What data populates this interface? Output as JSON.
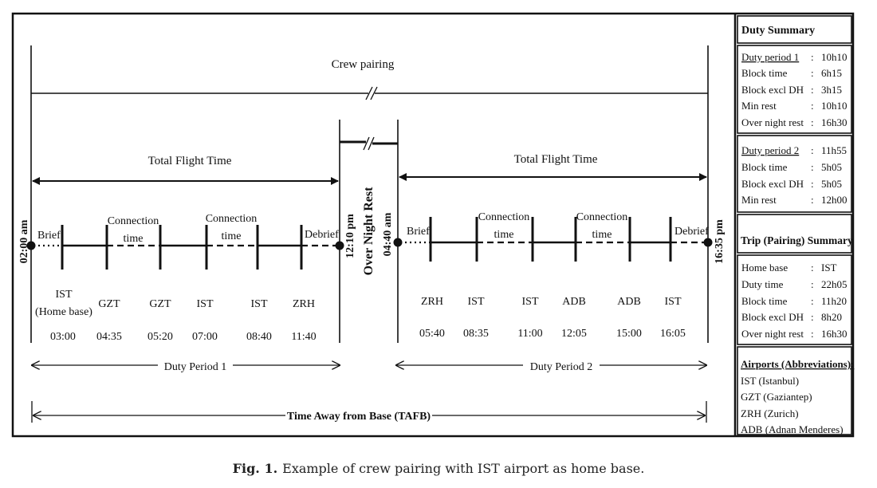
{
  "diagram": {
    "crew_pairing": "Crew pairing",
    "total_flight_time": "Total Flight Time",
    "connection": "Connection",
    "time": "time",
    "brief": "Brief",
    "debrief": "Debrief",
    "over_night_rest": "Over Night Rest",
    "times_vertical": [
      "02:00 am",
      "12:10 pm",
      "04:40 am",
      "16:35 pm"
    ],
    "duty_period_1": "Duty Period 1",
    "duty_period_2": "Duty Period 2",
    "tafb": "Time Away from Base (TAFB)",
    "period1": {
      "airports": [
        "IST",
        "GZT",
        "GZT",
        "IST",
        "IST",
        "ZRH"
      ],
      "home_base_note": "(Home base)",
      "times": [
        "03:00",
        "04:35",
        "05:20",
        "07:00",
        "08:40",
        "11:40"
      ]
    },
    "period2": {
      "airports": [
        "ZRH",
        "IST",
        "IST",
        "ADB",
        "ADB",
        "IST"
      ],
      "times": [
        "05:40",
        "08:35",
        "11:00",
        "12:05",
        "15:00",
        "16:05"
      ]
    }
  },
  "side_panel": {
    "duty_summary_title": "Duty Summary",
    "duty_period_1": {
      "title": "Duty period 1",
      "title_value": "10h10",
      "rows": [
        {
          "label": "Block time",
          "value": "6h15"
        },
        {
          "label": "Block excl DH",
          "value": "3h15"
        },
        {
          "label": "Min rest",
          "value": "10h10"
        },
        {
          "label": "Over night rest",
          "value": "16h30"
        }
      ]
    },
    "duty_period_2": {
      "title": "Duty period 2",
      "title_value": "11h55",
      "rows": [
        {
          "label": "Block time",
          "value": "5h05"
        },
        {
          "label": "Block excl DH",
          "value": "5h05"
        },
        {
          "label": "Min rest",
          "value": "12h00"
        }
      ]
    },
    "trip_summary_title": "Trip (Pairing) Summary",
    "trip_rows": [
      {
        "label": "Home base",
        "value": "IST"
      },
      {
        "label": "Duty time",
        "value": "22h05"
      },
      {
        "label": "Block time",
        "value": "11h20"
      },
      {
        "label": "Block excl DH",
        "value": "8h20"
      },
      {
        "label": "Over night rest",
        "value": "16h30"
      }
    ],
    "airports_title": "Airports (Abbreviations):",
    "airports": [
      "IST (Istanbul)",
      "GZT (Gaziantep)",
      "ZRH (Zurich)",
      "ADB (Adnan Menderes)"
    ]
  },
  "caption": {
    "label": "Fig. 1.",
    "text": "Example of crew pairing with IST airport as home base."
  }
}
